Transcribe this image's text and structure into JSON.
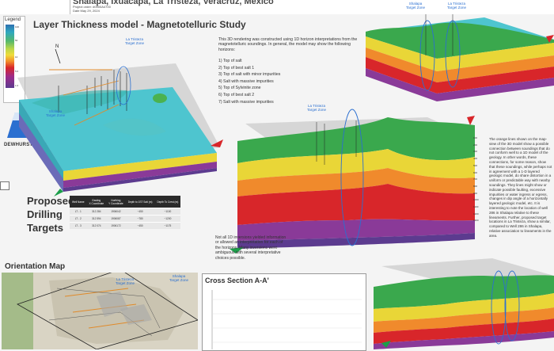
{
  "header": {
    "title": "Shalapa, Ixuacapa, La Tristeza, Veracruz, México",
    "project_order": "Project order: #0000A4700",
    "date": "Date May 29, 2024"
  },
  "legend": {
    "title": "Legend",
    "labels": [
      "100",
      "50",
      "10",
      "5.0",
      "1.0"
    ]
  },
  "company": {
    "name": "DEWHURST GROUP"
  },
  "main_title": "Layer Thickness model - Magnetotelluric Study",
  "intro_text": "This 3D rendering was constructed using 1D horizon interpretations from the magnetotelluric soundings. In general, the model may show the following horizons:",
  "horizons": [
    "1)   Top of salt",
    "2)   Top of best salt 1",
    "3)   Top of salt with minor impurities",
    "4)   Salt with massive impurities",
    "5)   Top of Sylvinite zone",
    "6)   Top of best salt 2",
    "7)   Salt with massive impurities"
  ],
  "annotations": {
    "la_tristeza_target": "La Tristeza\nTarget Zone",
    "shalapa_target": "Shalapa\nTarget Zone",
    "north": "N"
  },
  "orange_text": "The orange lines shown on the map-view of the 3D model show a possible connection between soundings that do not conform well to a 1D model of the geology. In other words, these connections, for some reason, show that these soundings, while perhaps not in agreement with a 1-D layered geologic model, do share distortion in a uniform or predictable way with nearby soundings. They lines might show or indicate possible faulting, excessive impurities or water ingress or egress, changes in dip angle of a horizontally layered geologic model, etc. It is interesting to note the location of well 286 in Shalapa relative to these lineaments. Further, proposed target locations in La Tristeza, show a similar, compared to Well 286 in Shalapa, relative association to lineaments in the area.",
  "inversion_text": "Not all 1D inversions yielded information or allowed an interpretation for each of the horizons. Many inversions were ambiguous with several interpretative choices possible.",
  "proposed": {
    "title": "Proposed\nDrilling\nTargets",
    "headers": [
      "Well Name",
      "Easting\nX Coordinate",
      "Northing\nY Coordinate",
      "Depth to 1ST Salt (m)",
      "Depth To Crest (m)"
    ],
    "rows": [
      [
        "LT - 1",
        "312 284",
        "1906042",
        "~450",
        "~1100"
      ],
      [
        "LT - 2",
        "312 594",
        "1906087",
        "~780",
        "~1200"
      ],
      [
        "LT - 3",
        "312 074",
        "1906172",
        "~450",
        "~1175"
      ]
    ]
  },
  "orientation_map": {
    "title": "Orientation Map",
    "la_tristeza_label": "La Tristeza\nTarget Zone",
    "shalapa_label": "Shalapa\nTarget Zone"
  },
  "cross_section": {
    "title": "Cross Section A-A'"
  },
  "scale_labels": [
    "100",
    "200",
    "300",
    "400",
    "500",
    "600",
    "700",
    "800",
    "900",
    "1000",
    "1100",
    "1200",
    "1300"
  ],
  "colors": {
    "salt_cyan": "#4ec5cf",
    "top_green": "#3aa84d",
    "yellow": "#e9d637",
    "orange": "#f08a2c",
    "red": "#d8262a",
    "purple": "#8a3a98",
    "blue": "#2b6fd0"
  }
}
